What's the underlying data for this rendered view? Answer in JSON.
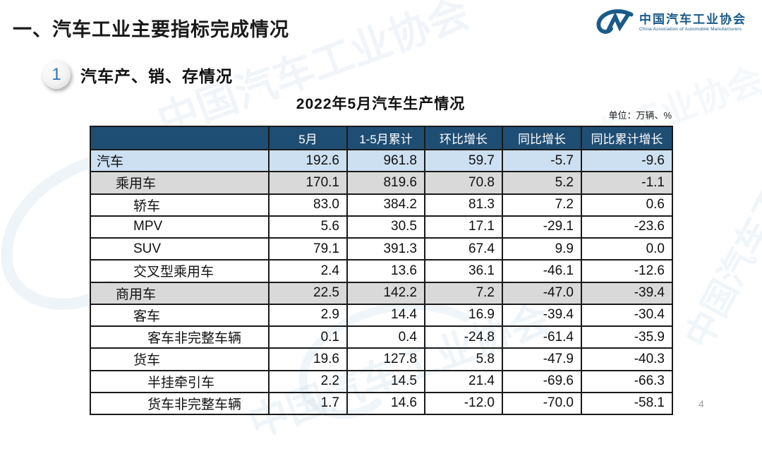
{
  "page": {
    "title": "一、汽车工业主要指标完成情况",
    "page_number": "4"
  },
  "logo": {
    "name_cn": "中国汽车工业协会",
    "name_en": "China Association of Automobile Manufacturers",
    "color": "#1a5a8a"
  },
  "section": {
    "badge": "1",
    "title": "汽车产、销、存情况"
  },
  "watermark": {
    "text": "中国汽车工业协会"
  },
  "table": {
    "title": "2022年5月汽车生产情况",
    "unit": "单位：万辆、%",
    "columns": [
      "",
      "5月",
      "1-5月累计",
      "环比增长",
      "同比增长",
      "同比累计增长"
    ],
    "rows": [
      {
        "label": "汽车",
        "indent": 0,
        "bg": "blue",
        "values": [
          "192.6",
          "961.8",
          "59.7",
          "-5.7",
          "-9.6"
        ]
      },
      {
        "label": "乘用车",
        "indent": 1,
        "bg": "gray",
        "values": [
          "170.1",
          "819.6",
          "70.8",
          "5.2",
          "-1.1"
        ]
      },
      {
        "label": "轿车",
        "indent": 2,
        "bg": "white",
        "values": [
          "83.0",
          "384.2",
          "81.3",
          "7.2",
          "0.6"
        ]
      },
      {
        "label": "MPV",
        "indent": 2,
        "bg": "white",
        "values": [
          "5.6",
          "30.5",
          "17.1",
          "-29.1",
          "-23.6"
        ]
      },
      {
        "label": "SUV",
        "indent": 2,
        "bg": "white",
        "values": [
          "79.1",
          "391.3",
          "67.4",
          "9.9",
          "0.0"
        ]
      },
      {
        "label": "交叉型乘用车",
        "indent": 2,
        "bg": "white",
        "values": [
          "2.4",
          "13.6",
          "36.1",
          "-46.1",
          "-12.6"
        ]
      },
      {
        "label": "商用车",
        "indent": 1,
        "bg": "gray",
        "values": [
          "22.5",
          "142.2",
          "7.2",
          "-47.0",
          "-39.4"
        ]
      },
      {
        "label": "客车",
        "indent": 2,
        "bg": "white",
        "values": [
          "2.9",
          "14.4",
          "16.9",
          "-39.4",
          "-30.4"
        ]
      },
      {
        "label": "客车非完整车辆",
        "indent": 3,
        "bg": "white",
        "values": [
          "0.1",
          "0.4",
          "-24.8",
          "-61.4",
          "-35.9"
        ]
      },
      {
        "label": "货车",
        "indent": 2,
        "bg": "white",
        "values": [
          "19.6",
          "127.8",
          "5.8",
          "-47.9",
          "-40.3"
        ]
      },
      {
        "label": "半挂牵引车",
        "indent": 3,
        "bg": "white",
        "values": [
          "2.2",
          "14.5",
          "21.4",
          "-69.6",
          "-66.3"
        ]
      },
      {
        "label": "货车非完整车辆",
        "indent": 3,
        "bg": "white",
        "values": [
          "1.7",
          "14.6",
          "-12.0",
          "-70.0",
          "-58.1"
        ]
      }
    ]
  },
  "colors": {
    "header_bg": "#1f4e74",
    "row_blue": "#cde0f1",
    "row_gray": "#d9d9d9",
    "border": "#1a1a1a",
    "logo_blue": "#1a5a8a"
  }
}
